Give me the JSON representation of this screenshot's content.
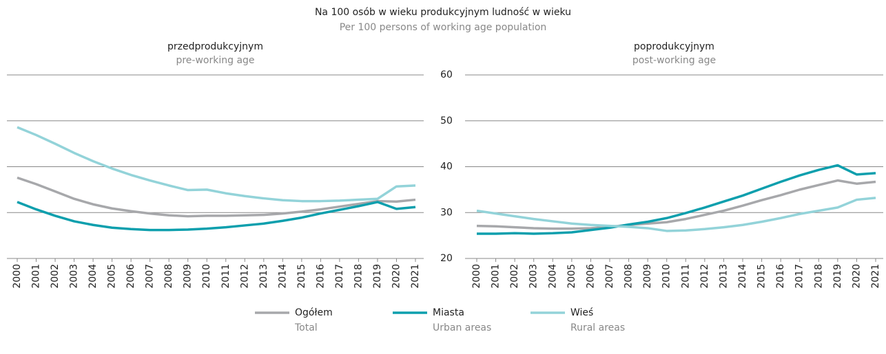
{
  "header": {
    "title": "Na 100 osób w wieku produkcyjnym ludność w wieku",
    "subtitle": "Per 100 persons of working age population"
  },
  "chart_data": [
    {
      "type": "line",
      "title": "przedprodukcyjnym",
      "subtitle": "pre-working age",
      "categories": [
        "2000",
        "2001",
        "2002",
        "2003",
        "2004",
        "2005",
        "2006",
        "2007",
        "2008",
        "2009",
        "2010",
        "2011",
        "2012",
        "2013",
        "2014",
        "2015",
        "2016",
        "2017",
        "2018",
        "2019",
        "2020",
        "2021"
      ],
      "ylim": [
        20,
        60
      ],
      "yticks": [
        20,
        30,
        40,
        50,
        60
      ],
      "grid": true,
      "series": [
        {
          "name": "Ogółem",
          "name_en": "Total",
          "color": "#a7a8ab",
          "values": [
            37.6,
            36.2,
            34.6,
            33.0,
            31.8,
            30.9,
            30.3,
            29.8,
            29.4,
            29.2,
            29.3,
            29.3,
            29.4,
            29.5,
            29.8,
            30.2,
            30.7,
            31.3,
            31.9,
            32.5,
            32.4,
            32.8
          ]
        },
        {
          "name": "Miasta",
          "name_en": "Urban areas",
          "color": "#0d9fad",
          "values": [
            32.3,
            30.7,
            29.3,
            28.1,
            27.3,
            26.7,
            26.4,
            26.2,
            26.2,
            26.3,
            26.5,
            26.8,
            27.2,
            27.6,
            28.2,
            28.9,
            29.8,
            30.6,
            31.4,
            32.3,
            30.8,
            31.2
          ]
        },
        {
          "name": "Wieś",
          "name_en": "Rural areas",
          "color": "#93d3d9",
          "values": [
            48.6,
            46.9,
            45.0,
            43.0,
            41.2,
            39.6,
            38.2,
            37.0,
            35.9,
            34.9,
            35.0,
            34.2,
            33.6,
            33.1,
            32.7,
            32.5,
            32.5,
            32.6,
            32.8,
            33.0,
            35.7,
            35.9
          ]
        }
      ]
    },
    {
      "type": "line",
      "title": "poprodukcyjnym",
      "subtitle": "post-working age",
      "categories": [
        "2000",
        "2001",
        "2002",
        "2003",
        "2004",
        "2005",
        "2006",
        "2007",
        "2008",
        "2009",
        "2010",
        "2011",
        "2012",
        "2013",
        "2014",
        "2015",
        "2016",
        "2017",
        "2018",
        "2019",
        "2020",
        "2021"
      ],
      "ylim": [
        20,
        60
      ],
      "yticks": [
        20,
        30,
        40,
        50,
        60
      ],
      "grid": true,
      "series": [
        {
          "name": "Ogółem",
          "name_en": "Total",
          "color": "#a7a8ab",
          "values": [
            27.1,
            27.0,
            26.8,
            26.6,
            26.5,
            26.5,
            26.6,
            26.9,
            27.3,
            27.6,
            27.9,
            28.6,
            29.5,
            30.4,
            31.5,
            32.7,
            33.8,
            35.0,
            36.0,
            37.0,
            36.3,
            36.7
          ]
        },
        {
          "name": "Miasta",
          "name_en": "Urban areas",
          "color": "#0d9fad",
          "values": [
            25.4,
            25.4,
            25.5,
            25.4,
            25.5,
            25.7,
            26.2,
            26.7,
            27.4,
            28.0,
            28.8,
            29.9,
            31.1,
            32.4,
            33.7,
            35.2,
            36.7,
            38.1,
            39.3,
            40.3,
            38.3,
            38.6
          ]
        },
        {
          "name": "Wieś",
          "name_en": "Rural areas",
          "color": "#93d3d9",
          "values": [
            30.4,
            29.8,
            29.2,
            28.6,
            28.1,
            27.6,
            27.3,
            27.1,
            26.9,
            26.6,
            26.0,
            26.1,
            26.4,
            26.8,
            27.3,
            28.0,
            28.8,
            29.7,
            30.4,
            31.1,
            32.8,
            33.2
          ]
        }
      ]
    }
  ]
}
